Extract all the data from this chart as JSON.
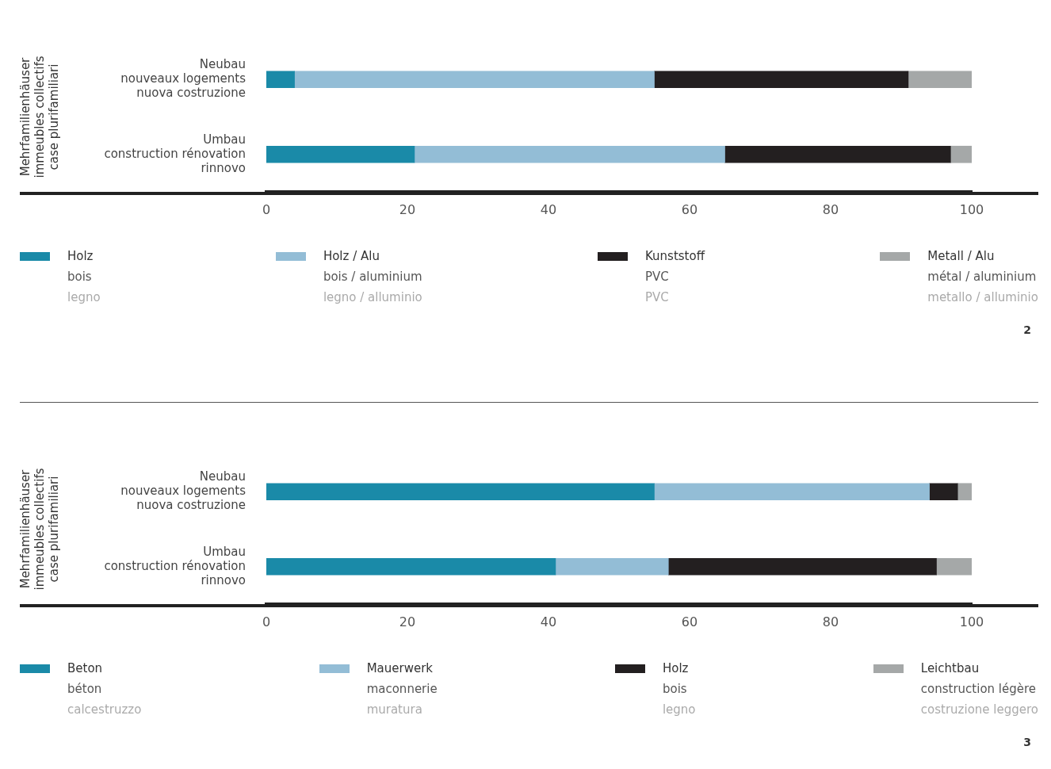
{
  "chart_data": [
    {
      "type": "bar",
      "orientation": "horizontal",
      "stacked": true,
      "ylabel": "Mehrfamilienhäuser\nimmeubles collectifs\ncase plurifamiliari",
      "categories": [
        "Neubau\nnouveaux logements\nnuova costruzione",
        "Umbau\nconstruction rénovation\nrinnovo"
      ],
      "series": [
        {
          "name": "Holz\nbois\nlegno",
          "color": "#1a8aa8",
          "values": [
            4,
            21
          ]
        },
        {
          "name": "Holz / Alu\nbois / aluminium\nlegno / alluminio",
          "color": "#93bdd6",
          "values": [
            51,
            44
          ]
        },
        {
          "name": "Kunststoff\nPVC\nPVC",
          "color": "#231f20",
          "values": [
            36,
            32
          ]
        },
        {
          "name": "Metall / Alu\nmétal / aluminium\nmetallo / alluminio",
          "color": "#a5a8a8",
          "values": [
            9,
            3
          ]
        }
      ],
      "xlim": [
        0,
        100
      ],
      "xticks": [
        0,
        20,
        40,
        60,
        80,
        100
      ],
      "grid": false,
      "legend": "bottom",
      "annotations": [
        "2"
      ]
    },
    {
      "type": "bar",
      "orientation": "horizontal",
      "stacked": true,
      "ylabel": "Mehrfamilienhäuser\nimmeubles collectifs\ncase plurifamiliari",
      "categories": [
        "Neubau\nnouveaux logements\nnuova costruzione",
        "Umbau\nconstruction rénovation\nrinnovo"
      ],
      "series": [
        {
          "name": "Beton\nbéton\ncalcestruzzo",
          "color": "#1a8aa8",
          "values": [
            55,
            41
          ]
        },
        {
          "name": "Mauerwerk\nmaconnerie\nmuratura",
          "color": "#93bdd6",
          "values": [
            39,
            16
          ]
        },
        {
          "name": "Holz\nbois\nlegno",
          "color": "#231f20",
          "values": [
            4,
            38
          ]
        },
        {
          "name": "Leichtbau\nconstruction légère\ncostruzione leggero",
          "color": "#a5a8a8",
          "values": [
            2,
            5
          ]
        }
      ],
      "xlim": [
        0,
        100
      ],
      "xticks": [
        0,
        20,
        40,
        60,
        80,
        100
      ],
      "grid": false,
      "legend": "bottom",
      "annotations": [
        "3"
      ]
    }
  ]
}
